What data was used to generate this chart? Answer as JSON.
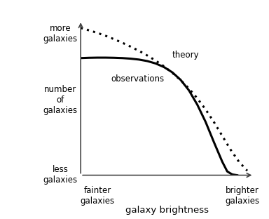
{
  "background_color": "#ffffff",
  "obs_x": [
    0.0,
    0.05,
    0.1,
    0.15,
    0.2,
    0.25,
    0.3,
    0.35,
    0.4,
    0.45,
    0.5,
    0.55,
    0.6,
    0.65,
    0.7,
    0.75,
    0.8,
    0.85,
    0.88,
    0.91,
    0.94
  ],
  "obs_y": [
    0.78,
    0.782,
    0.783,
    0.783,
    0.782,
    0.78,
    0.776,
    0.77,
    0.76,
    0.744,
    0.72,
    0.685,
    0.635,
    0.565,
    0.47,
    0.355,
    0.22,
    0.09,
    0.025,
    0.005,
    0.0
  ],
  "theory_x": [
    0.0,
    0.05,
    0.1,
    0.15,
    0.2,
    0.25,
    0.3,
    0.35,
    0.4,
    0.45,
    0.5,
    0.55,
    0.6,
    0.65,
    0.7,
    0.75,
    0.8,
    0.85,
    0.9,
    0.95,
    1.0
  ],
  "theory_y": [
    0.98,
    0.965,
    0.948,
    0.928,
    0.906,
    0.882,
    0.856,
    0.828,
    0.797,
    0.763,
    0.725,
    0.682,
    0.633,
    0.577,
    0.512,
    0.438,
    0.354,
    0.262,
    0.17,
    0.09,
    0.03
  ],
  "obs_label": "observations",
  "theory_label": "theory",
  "obs_color": "#000000",
  "theory_color": "#000000",
  "label_color": "#000000",
  "axis_color": "#444444",
  "ylim": [
    0.0,
    1.05
  ],
  "xlim": [
    0.0,
    1.05
  ],
  "y_top_label": "more\ngalaxies",
  "y_mid_label": "number\nof\ngalaxies",
  "y_bot_label": "less\ngalaxies",
  "x_left_label": "fainter\ngalaxies",
  "x_right_label": "brighter\ngalaxies",
  "xlabel": "galaxy brightness",
  "font_size": 8.5,
  "xlabel_fontsize": 9.5
}
